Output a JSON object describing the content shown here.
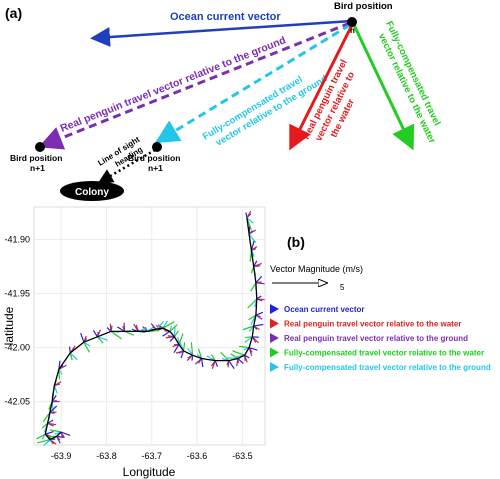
{
  "panel_a": {
    "label": "(a)",
    "bird_position": "Bird position",
    "bird_position_n": "n",
    "bird_position_n1": "Bird position\nn+1",
    "ocean_vector": "Ocean current vector",
    "real_ground": "Real penguin travel vector relative to the ground",
    "fully_ground": "Fully-compensated travel\nvector relative to the ground",
    "real_water": "Real penguin travel\nvector relative to\nthe water",
    "fully_water": "Fully-compensated travel\nvector relative to the water",
    "line_of_sight": "Line of sight\nheading",
    "colony": "Colony",
    "colors": {
      "ocean": "#1f3fbf",
      "real_water": "#e41a1c",
      "real_ground": "#7b2fb0",
      "fully_water": "#22cc22",
      "fully_ground": "#22c7e8"
    }
  },
  "panel_b": {
    "label": "(b)",
    "legend_title": "Vector Magnitude (m/s)",
    "legend_value": "5",
    "legend_items": [
      {
        "label": "Ocean current vector",
        "color": "#2222dd"
      },
      {
        "label": "Real penguin travel vector relative to the water",
        "color": "#dd2222"
      },
      {
        "label": "Real penguin travel vector relative to the ground",
        "color": "#7b2fb0"
      },
      {
        "label": "Fully-compensated travel vector relative to the water",
        "color": "#22cc22"
      },
      {
        "label": "Fully-compensated travel vector relative to the ground",
        "color": "#22c7e8"
      }
    ]
  },
  "chart_data": {
    "type": "scatter",
    "xlabel": "Longitude",
    "ylabel": "latitude",
    "xlim": [
      -63.96,
      -63.45
    ],
    "ylim": [
      -42.09,
      -41.87
    ],
    "xticks": [
      -63.9,
      -63.8,
      -63.7,
      -63.6,
      -63.5
    ],
    "yticks": [
      -41.9,
      -41.95,
      -42.0,
      -42.05
    ],
    "xtick_labels": [
      "-63.9",
      "-63.8",
      "-63.7",
      "-63.6",
      "-63.5"
    ],
    "ytick_labels": [
      "-41.90",
      "-41.95",
      "-42.00",
      "-42.05"
    ],
    "grid": true,
    "track": {
      "x": [
        -63.49,
        -63.485,
        -63.48,
        -63.475,
        -63.47,
        -63.468,
        -63.47,
        -63.475,
        -63.478,
        -63.485,
        -63.495,
        -63.51,
        -63.53,
        -63.56,
        -63.59,
        -63.61,
        -63.63,
        -63.64,
        -63.65,
        -63.66,
        -63.675,
        -63.69,
        -63.71,
        -63.73,
        -63.76,
        -63.79,
        -63.82,
        -63.85,
        -63.88,
        -63.905,
        -63.915,
        -63.92,
        -63.925,
        -63.93,
        -63.935,
        -63.925,
        -63.91,
        -63.9
      ],
      "y": [
        -41.88,
        -41.895,
        -41.91,
        -41.925,
        -41.94,
        -41.955,
        -41.97,
        -41.98,
        -41.99,
        -42.0,
        -42.007,
        -42.01,
        -42.012,
        -42.012,
        -42.01,
        -42.007,
        -42.003,
        -41.997,
        -41.99,
        -41.985,
        -41.982,
        -41.983,
        -41.985,
        -41.985,
        -41.985,
        -41.985,
        -41.99,
        -41.995,
        -42.005,
        -42.02,
        -42.035,
        -42.05,
        -42.06,
        -42.07,
        -42.08,
        -42.085,
        -42.082,
        -42.078
      ]
    },
    "vector_sample_step": 1
  }
}
